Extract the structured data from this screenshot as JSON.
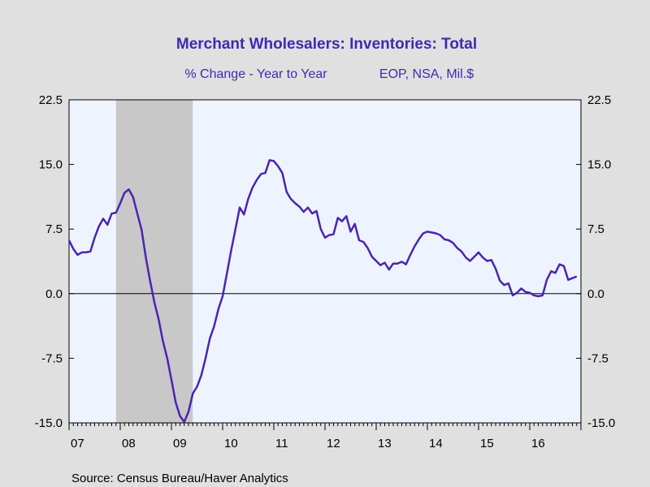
{
  "chart_data": {
    "type": "line",
    "title": "Merchant Wholesalers: Inventories: Total",
    "subtitle_left": "% Change - Year to Year",
    "subtitle_right": "EOP, NSA, Mil.$",
    "source": "Source:  Census Bureau/Haver Analytics",
    "ylim": [
      -15,
      22.5
    ],
    "xlim": [
      2007.0,
      2017.0
    ],
    "yticks": [
      "22.5",
      "15.0",
      "7.5",
      "0.0",
      "-7.5",
      "-15.0"
    ],
    "ytick_values": [
      22.5,
      15,
      7.5,
      0,
      -7.5,
      -15
    ],
    "xtick_labels": [
      "07",
      "08",
      "09",
      "10",
      "11",
      "12",
      "13",
      "14",
      "15",
      "16"
    ],
    "recession": {
      "start": 2007.917,
      "end": 2009.417
    },
    "colors": {
      "line": "#4b24b4",
      "title": "#3f2ab0",
      "plot_bg": "#eef4ff",
      "recession": "#c8c8c8",
      "page_bg": "#e0e0e0"
    },
    "series": [
      {
        "x": [
          2007.0,
          2007.083,
          2007.167,
          2007.25,
          2007.333,
          2007.417,
          2007.5,
          2007.583,
          2007.667,
          2007.75,
          2007.833,
          2007.917,
          2008.0,
          2008.083,
          2008.167,
          2008.25,
          2008.333,
          2008.417,
          2008.5,
          2008.583,
          2008.667,
          2008.75,
          2008.833,
          2008.917,
          2009.0,
          2009.083,
          2009.167,
          2009.25,
          2009.333,
          2009.417,
          2009.5,
          2009.583,
          2009.667,
          2009.75,
          2009.833,
          2009.917,
          2010.0,
          2010.083,
          2010.167,
          2010.25,
          2010.333,
          2010.417,
          2010.5,
          2010.583,
          2010.667,
          2010.75,
          2010.833,
          2010.917,
          2011.0,
          2011.083,
          2011.167,
          2011.25,
          2011.333,
          2011.417,
          2011.5,
          2011.583,
          2011.667,
          2011.75,
          2011.833,
          2011.917,
          2012.0,
          2012.083,
          2012.167,
          2012.25,
          2012.333,
          2012.417,
          2012.5,
          2012.583,
          2012.667,
          2012.75,
          2012.833,
          2012.917,
          2013.0,
          2013.083,
          2013.167,
          2013.25,
          2013.333,
          2013.417,
          2013.5,
          2013.583,
          2013.667,
          2013.75,
          2013.833,
          2013.917,
          2014.0,
          2014.083,
          2014.167,
          2014.25,
          2014.333,
          2014.417,
          2014.5,
          2014.583,
          2014.667,
          2014.75,
          2014.833,
          2014.917,
          2015.0,
          2015.083,
          2015.167,
          2015.25,
          2015.333,
          2015.417,
          2015.5,
          2015.583,
          2015.667,
          2015.75,
          2015.833,
          2015.917,
          2016.0,
          2016.083,
          2016.167,
          2016.25,
          2016.333,
          2016.417,
          2016.5,
          2016.583,
          2016.667,
          2016.75,
          2016.833,
          2016.917
        ],
        "values": [
          6.2,
          5.2,
          4.5,
          4.8,
          4.8,
          4.9,
          6.5,
          7.8,
          8.7,
          8.0,
          9.3,
          9.4,
          10.5,
          11.7,
          12.1,
          11.2,
          9.3,
          7.4,
          4.2,
          1.5,
          -1.0,
          -3.0,
          -5.5,
          -7.5,
          -10.0,
          -12.6,
          -14.2,
          -14.9,
          -13.7,
          -11.6,
          -10.8,
          -9.5,
          -7.5,
          -5.2,
          -3.8,
          -1.8,
          -0.3,
          2.3,
          5.0,
          7.5,
          10.0,
          9.2,
          11.0,
          12.3,
          13.2,
          13.9,
          14.0,
          15.5,
          15.4,
          14.8,
          14.0,
          11.8,
          11.0,
          10.5,
          10.1,
          9.5,
          10.0,
          9.3,
          9.6,
          7.5,
          6.5,
          6.8,
          6.9,
          8.8,
          8.4,
          9.0,
          7.2,
          8.1,
          6.2,
          6.0,
          5.3,
          4.3,
          3.8,
          3.3,
          3.6,
          2.8,
          3.5,
          3.5,
          3.7,
          3.4,
          4.5,
          5.5,
          6.3,
          7.0,
          7.2,
          7.1,
          7.0,
          6.8,
          6.3,
          6.2,
          5.9,
          5.3,
          4.9,
          4.2,
          3.8,
          4.3,
          4.8,
          4.2,
          3.8,
          3.9,
          2.9,
          1.5,
          1.0,
          1.2,
          -0.2,
          0.1,
          0.6,
          0.2,
          0.1,
          -0.2,
          -0.3,
          -0.2,
          1.6,
          2.6,
          2.4,
          3.4,
          3.2,
          1.6,
          1.8,
          2.0
        ]
      }
    ]
  }
}
